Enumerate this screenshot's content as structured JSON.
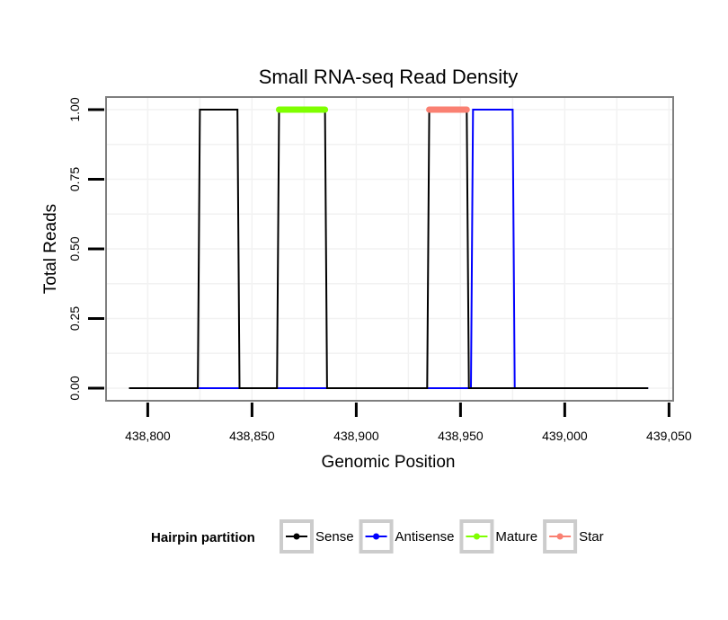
{
  "chart_data": {
    "type": "line",
    "title": "Small RNA-seq Read Density",
    "xlabel": "Genomic Position",
    "ylabel": "Total Reads",
    "xlim": [
      438780,
      439052
    ],
    "ylim": [
      -0.045,
      1.045
    ],
    "x_ticks": [
      438800,
      438850,
      438900,
      438950,
      439000,
      439050
    ],
    "x_tick_labels": [
      "438,800",
      "438,850",
      "438,900",
      "438,950",
      "439,000",
      "439,050"
    ],
    "y_ticks": [
      0,
      0.25,
      0.5,
      0.75,
      1.0
    ],
    "y_tick_labels": [
      "0.00",
      "0.25",
      "0.50",
      "0.75",
      "1.00"
    ],
    "grid": true,
    "legend": {
      "title": "Hairpin partition",
      "position": "bottom",
      "entries": [
        {
          "name": "Sense",
          "color": "#000000"
        },
        {
          "name": "Antisense",
          "color": "#0000ff"
        },
        {
          "name": "Mature",
          "color": "#7fff00"
        },
        {
          "name": "Star",
          "color": "#fa8072"
        }
      ]
    },
    "series": [
      {
        "name": "Antisense",
        "color": "#0000ff",
        "x": [
          438791,
          438955,
          438956,
          438975,
          438976,
          439040
        ],
        "y": [
          0,
          0,
          1,
          1,
          0,
          0
        ]
      },
      {
        "name": "Sense",
        "color": "#000000",
        "x": [
          438791,
          438824,
          438825,
          438843,
          438844,
          438862,
          438863,
          438885,
          438886,
          438934,
          438935,
          438953,
          438954,
          439040
        ],
        "y": [
          0,
          0,
          1,
          1,
          0,
          0,
          1,
          1,
          0,
          0,
          1,
          1,
          0,
          0
        ]
      },
      {
        "name": "Mature",
        "color": "#7fff00",
        "x": [
          438863,
          438885
        ],
        "y": [
          1,
          1
        ]
      },
      {
        "name": "Star",
        "color": "#fa8072",
        "x": [
          438935,
          438953
        ],
        "y": [
          1,
          1
        ]
      }
    ]
  }
}
